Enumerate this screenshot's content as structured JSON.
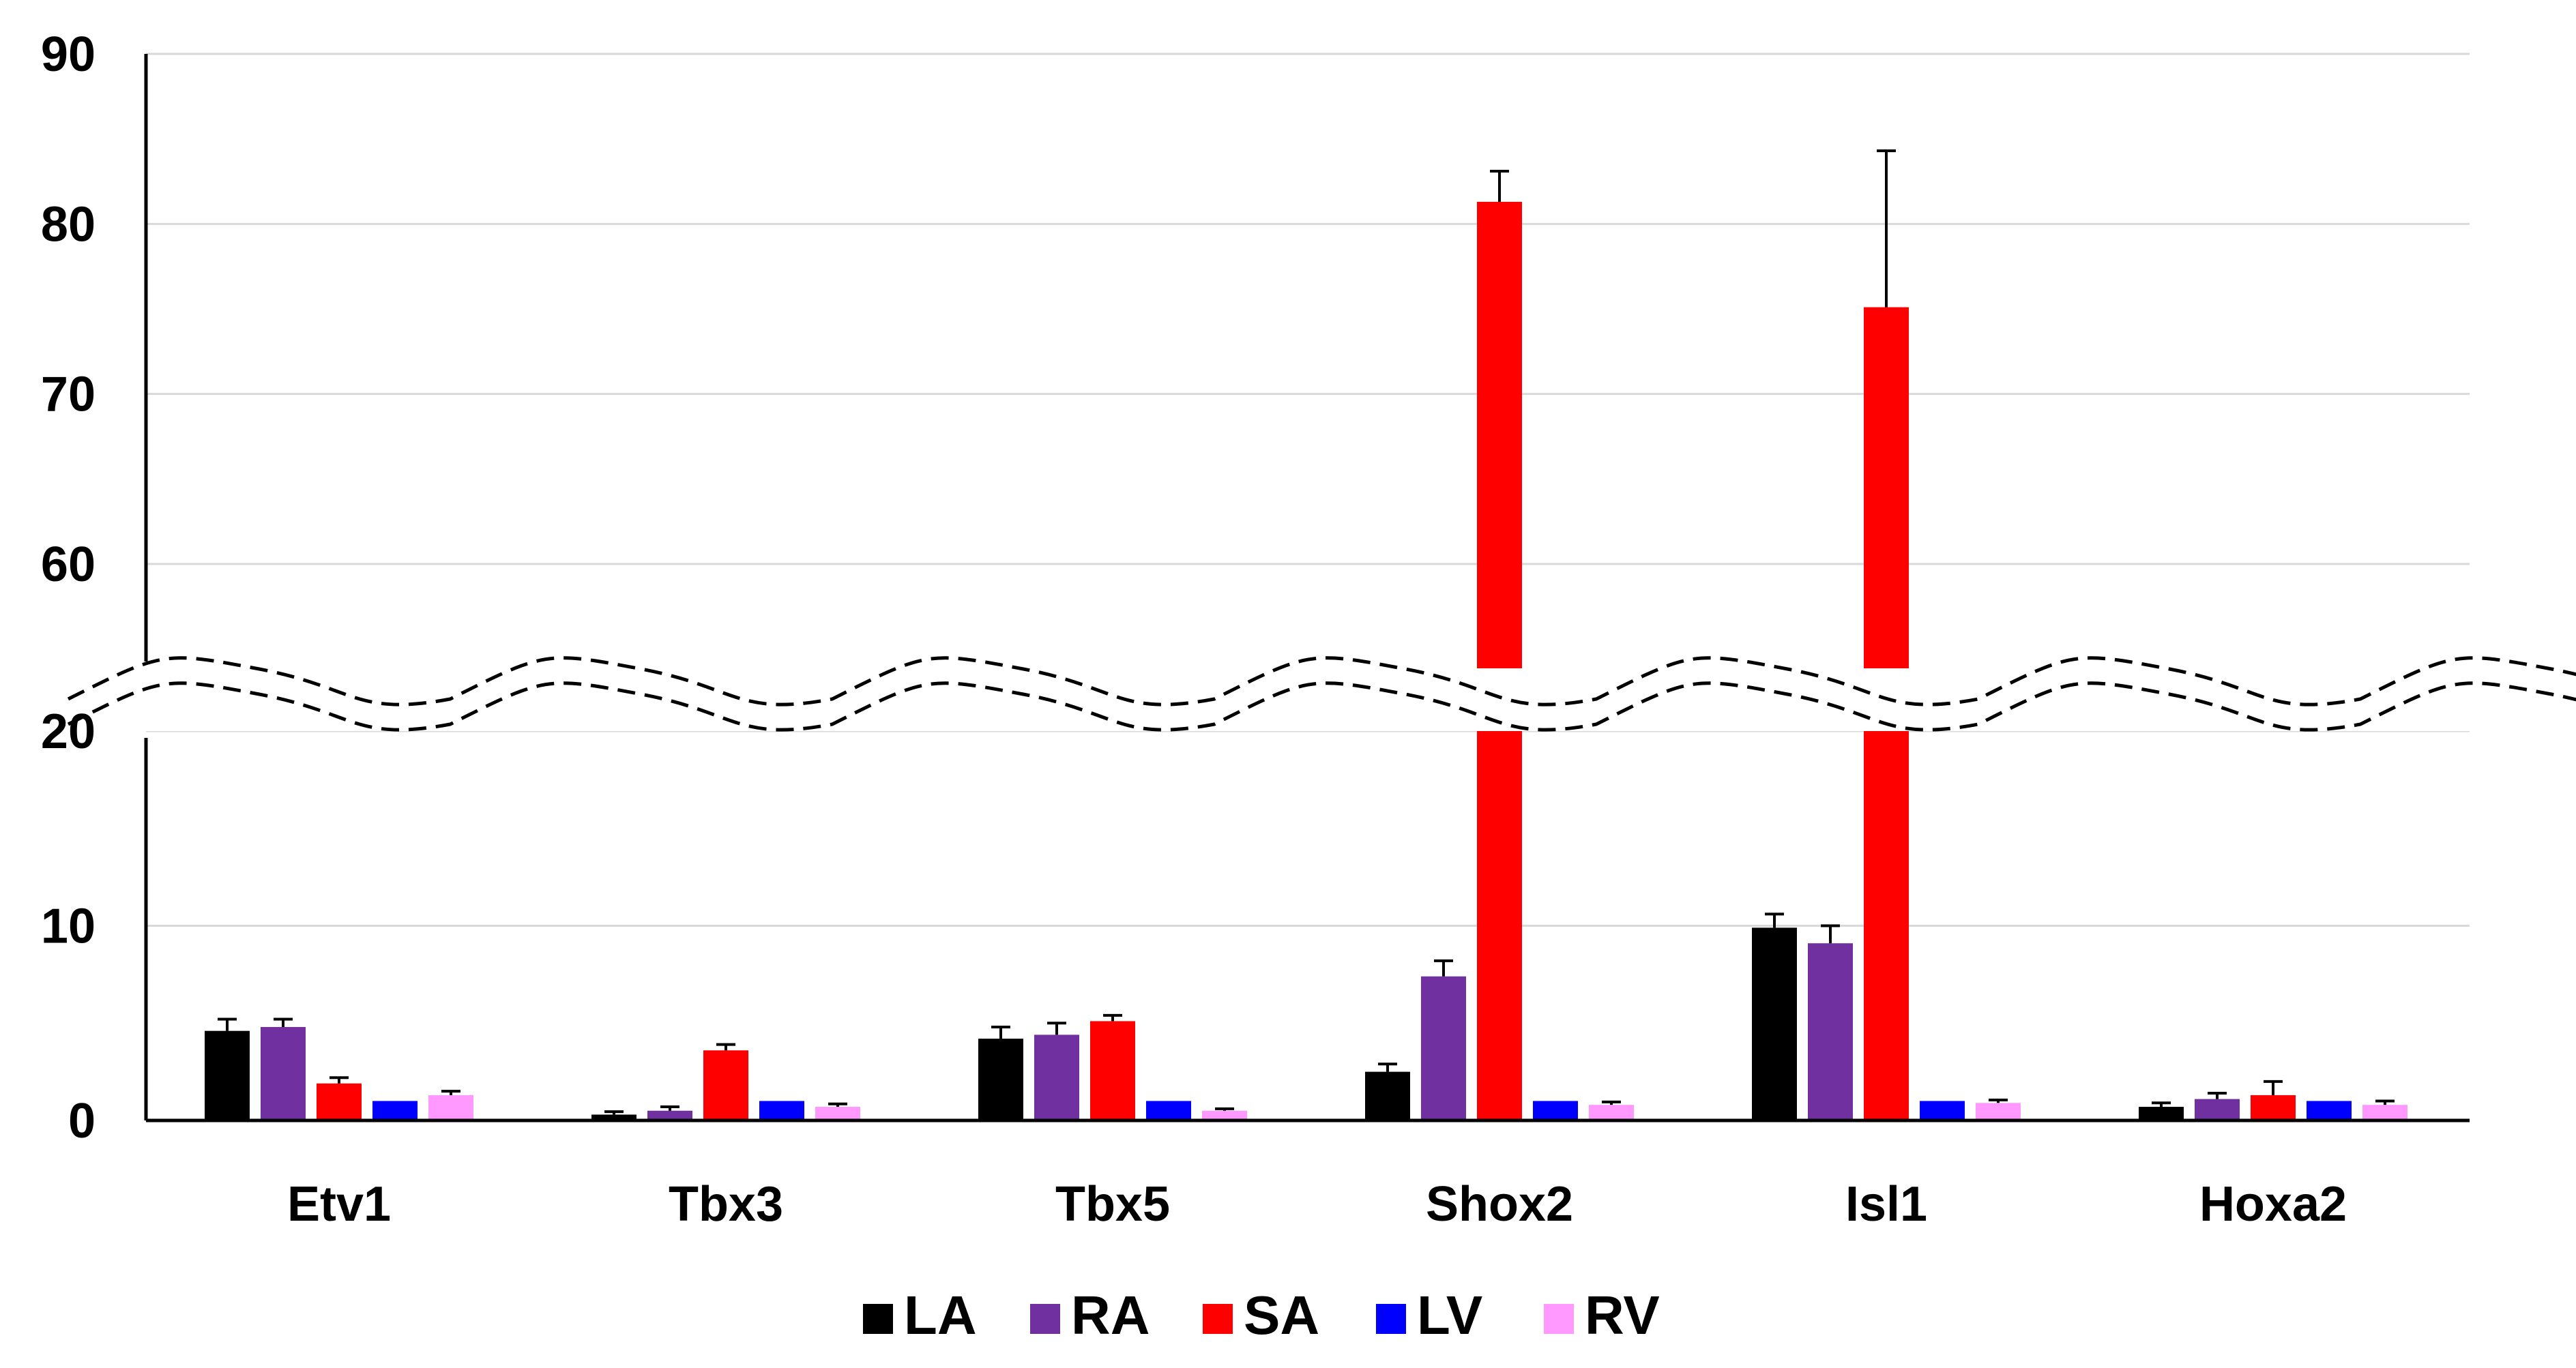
{
  "chart_data": {
    "type": "bar",
    "title": "",
    "xlabel": "",
    "ylabel": "",
    "axis_break": {
      "from": 25,
      "to": 55
    },
    "ylim": [
      0,
      90
    ],
    "yticks": [
      {
        "value": 0,
        "label": "0"
      },
      {
        "value": 10,
        "label": "10"
      },
      {
        "value": 20,
        "label": "20"
      },
      {
        "value": 60,
        "label": "60"
      },
      {
        "value": 70,
        "label": "70"
      },
      {
        "value": 80,
        "label": "80"
      },
      {
        "value": 90,
        "label": "90"
      }
    ],
    "grid": true,
    "legend_position": "bottom",
    "categories": [
      "Etv1",
      "Tbx3",
      "Tbx5",
      "Shox2",
      "Isl1",
      "Hoxa2"
    ],
    "series": [
      {
        "name": "LA",
        "color": "#000000",
        "values": [
          4.6,
          0.3,
          4.2,
          2.5,
          9.9,
          0.7
        ],
        "errors": [
          0.6,
          0.15,
          0.6,
          0.4,
          0.7,
          0.2
        ]
      },
      {
        "name": "RA",
        "color": "#7030a0",
        "values": [
          4.8,
          0.5,
          4.4,
          7.4,
          9.1,
          1.1
        ],
        "errors": [
          0.4,
          0.2,
          0.6,
          0.8,
          0.9,
          0.3
        ]
      },
      {
        "name": "SA",
        "color": "#ff0000",
        "values": [
          1.9,
          3.6,
          5.1,
          81.3,
          75.1,
          1.3
        ],
        "errors": [
          0.3,
          0.3,
          0.3,
          1.8,
          9.2,
          0.7
        ]
      },
      {
        "name": "LV",
        "color": "#0000ff",
        "values": [
          1.0,
          1.0,
          1.0,
          1.0,
          1.0,
          1.0
        ],
        "errors": [
          0,
          0,
          0,
          0,
          0,
          0
        ]
      },
      {
        "name": "RV",
        "color": "#ff99ff",
        "values": [
          1.3,
          0.7,
          0.5,
          0.8,
          0.9,
          0.8
        ],
        "errors": [
          0.2,
          0.15,
          0.1,
          0.15,
          0.15,
          0.2
        ]
      }
    ]
  }
}
